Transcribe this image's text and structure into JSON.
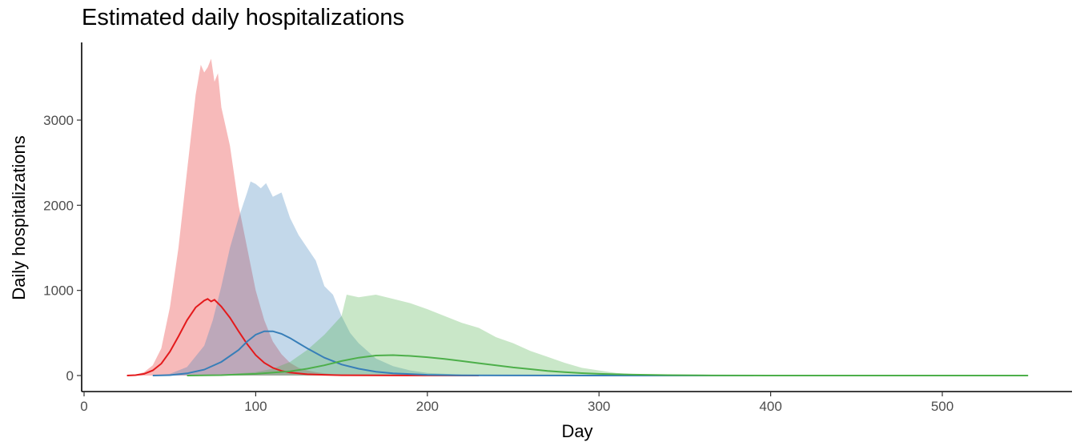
{
  "chart_data": {
    "type": "area",
    "title": "Estimated daily hospitalizations",
    "xlabel": "Day",
    "ylabel": "Daily hospitalizations",
    "xlim": [
      0,
      560
    ],
    "ylim": [
      -100,
      3900
    ],
    "xticks": [
      0,
      100,
      200,
      300,
      400,
      500
    ],
    "yticks": [
      0,
      1000,
      2000,
      3000
    ],
    "legend": "none",
    "grid": false,
    "series": [
      {
        "color": "#e41a1c",
        "band_x": [
          25,
          30,
          35,
          40,
          45,
          50,
          55,
          60,
          65,
          68,
          70,
          72,
          74,
          76,
          78,
          80,
          85,
          90,
          95,
          100,
          105,
          110,
          115,
          120,
          125,
          130,
          135,
          140,
          145,
          150,
          160,
          170,
          180,
          200,
          230
        ],
        "band_upper": [
          0,
          10,
          40,
          120,
          320,
          800,
          1500,
          2400,
          3300,
          3650,
          3560,
          3620,
          3720,
          3450,
          3550,
          3150,
          2700,
          2000,
          1500,
          1000,
          650,
          400,
          250,
          150,
          90,
          60,
          40,
          25,
          15,
          10,
          5,
          0,
          0,
          0,
          0
        ],
        "line_x": [
          25,
          30,
          35,
          40,
          45,
          50,
          55,
          60,
          65,
          70,
          72,
          74,
          76,
          80,
          85,
          90,
          95,
          100,
          105,
          110,
          115,
          120,
          130,
          140,
          150,
          170,
          200,
          230
        ],
        "line_y": [
          0,
          5,
          20,
          60,
          140,
          280,
          460,
          650,
          800,
          880,
          900,
          870,
          890,
          810,
          680,
          520,
          370,
          240,
          150,
          90,
          55,
          35,
          15,
          8,
          4,
          2,
          1,
          0
        ]
      },
      {
        "color": "#377eb8",
        "band_x": [
          40,
          50,
          60,
          70,
          75,
          80,
          85,
          90,
          95,
          97,
          100,
          103,
          106,
          110,
          115,
          120,
          125,
          130,
          135,
          140,
          145,
          150,
          155,
          160,
          170,
          180,
          190,
          200,
          220,
          250,
          300,
          350,
          390
        ],
        "band_upper": [
          0,
          20,
          100,
          350,
          650,
          1050,
          1500,
          1850,
          2150,
          2280,
          2250,
          2200,
          2260,
          2100,
          2150,
          1850,
          1650,
          1500,
          1350,
          1050,
          950,
          700,
          500,
          380,
          200,
          110,
          60,
          30,
          10,
          3,
          0,
          0,
          0
        ],
        "line_x": [
          40,
          50,
          60,
          70,
          80,
          90,
          95,
          100,
          105,
          110,
          115,
          120,
          125,
          130,
          140,
          150,
          160,
          170,
          180,
          200,
          220,
          250,
          300,
          350,
          390
        ],
        "line_y": [
          0,
          5,
          25,
          70,
          160,
          300,
          400,
          480,
          520,
          520,
          490,
          440,
          380,
          320,
          210,
          130,
          80,
          45,
          25,
          8,
          3,
          1,
          0,
          0,
          0
        ]
      },
      {
        "color": "#4daf4a",
        "band_x": [
          60,
          80,
          100,
          110,
          120,
          130,
          140,
          150,
          153,
          160,
          170,
          180,
          190,
          200,
          210,
          220,
          230,
          240,
          250,
          260,
          270,
          280,
          290,
          300,
          310,
          320,
          340,
          360,
          400,
          450,
          500,
          550
        ],
        "band_upper": [
          0,
          10,
          40,
          80,
          160,
          300,
          480,
          700,
          950,
          920,
          950,
          900,
          850,
          780,
          700,
          620,
          560,
          450,
          380,
          290,
          220,
          150,
          90,
          60,
          30,
          15,
          5,
          2,
          0,
          0,
          0,
          0
        ],
        "line_x": [
          60,
          80,
          100,
          120,
          130,
          140,
          150,
          160,
          170,
          180,
          190,
          200,
          210,
          220,
          230,
          240,
          250,
          260,
          270,
          280,
          290,
          300,
          320,
          340,
          360,
          400,
          450,
          500,
          550
        ],
        "line_y": [
          0,
          5,
          20,
          50,
          80,
          120,
          170,
          210,
          235,
          240,
          230,
          215,
          195,
          170,
          145,
          120,
          95,
          75,
          55,
          40,
          28,
          20,
          10,
          5,
          2,
          0,
          0,
          0,
          0
        ]
      }
    ]
  }
}
